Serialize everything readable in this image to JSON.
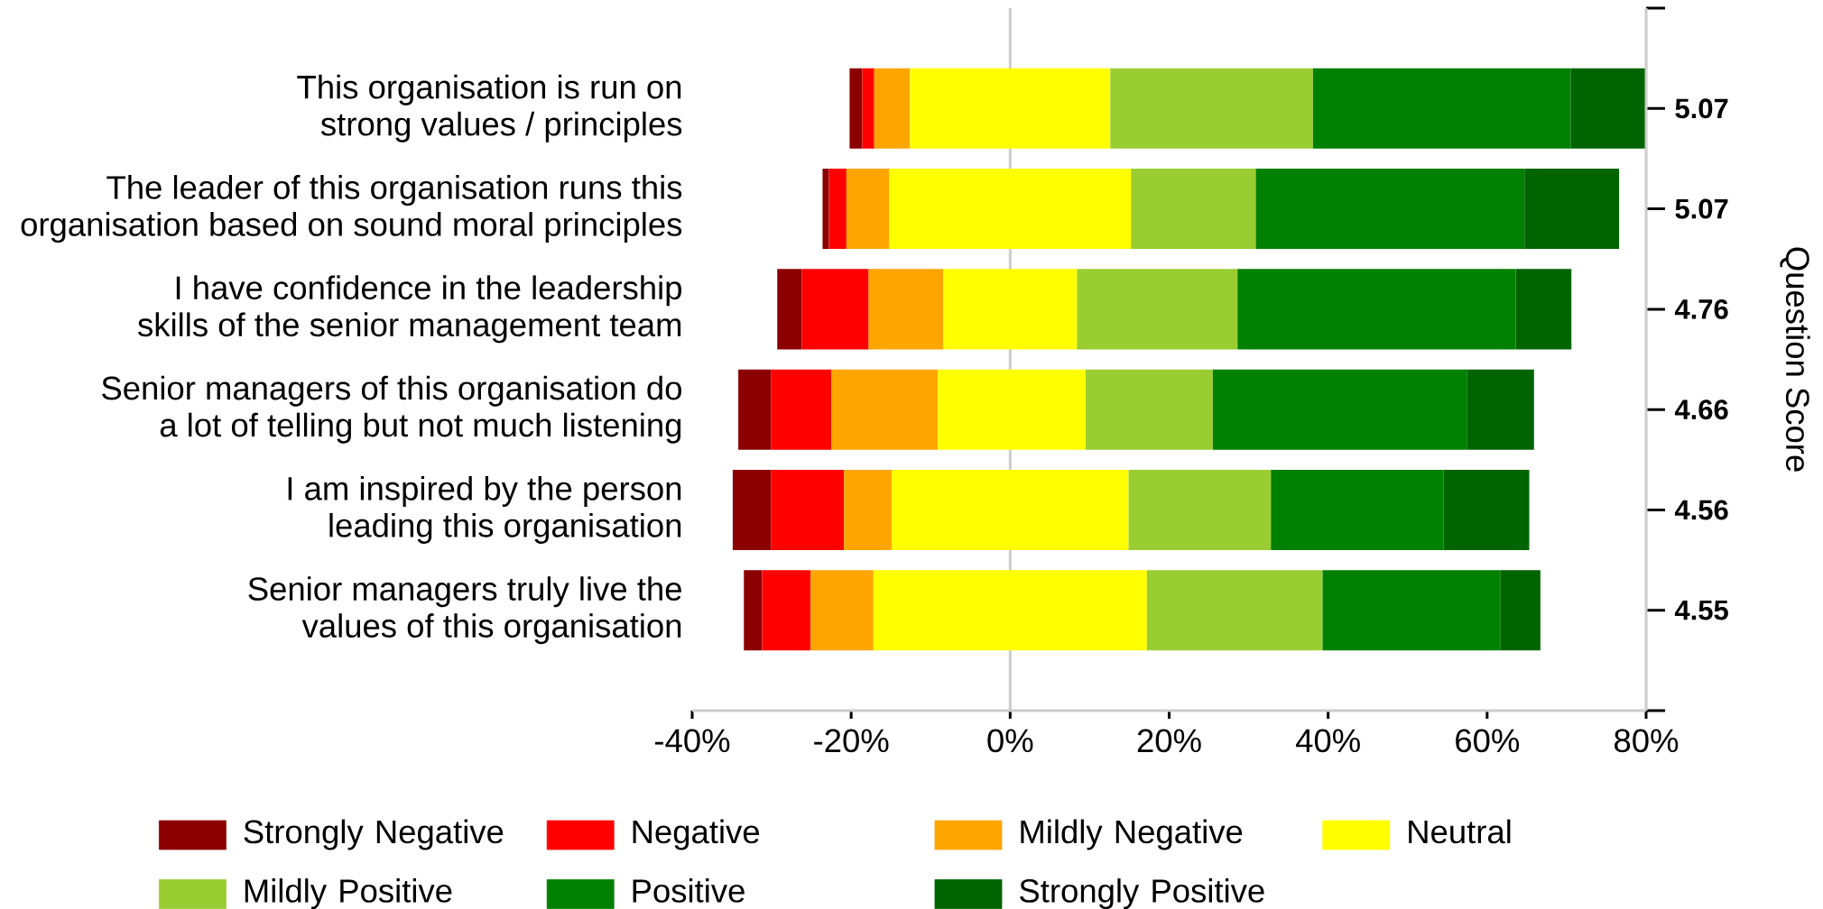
{
  "chart_data": {
    "type": "bar",
    "orientation": "horizontal",
    "categories": [
      "This organisation is run on strong values / principles",
      "The leader of this organisation runs this organisation based on sound moral principles",
      "I have confidence in the leadership skills of the senior management team",
      "Senior managers of this organisation do a lot of telling but not much listening",
      "I am inspired by the person leading this organisation",
      "Senior managers truly live the values of this organisation"
    ],
    "y2_categories": [
      "5.07",
      "5.07",
      "4.76",
      "4.66",
      "4.56",
      "4.55"
    ],
    "y2label": "Question Score",
    "series": [
      {
        "name": "Strongly Negative",
        "color": "#8b0000",
        "base": [
          -20.2,
          -23.6,
          -29.3,
          -34.2,
          -34.9,
          -33.5
        ],
        "values": [
          1.6,
          0.8,
          3.1,
          4.1,
          4.8,
          2.3
        ]
      },
      {
        "name": "Negative",
        "color": "#ff0000",
        "base": [
          -18.6,
          -22.8,
          -26.2,
          -30.1,
          -30.1,
          -31.2
        ],
        "values": [
          1.5,
          2.2,
          8.4,
          7.6,
          9.2,
          6.1
        ]
      },
      {
        "name": "Mildly Negative",
        "color": "#ffa500",
        "base": [
          -17.1,
          -20.6,
          -17.8,
          -22.5,
          -20.9,
          -25.1
        ],
        "values": [
          4.5,
          5.4,
          9.4,
          13.4,
          6.0,
          7.9
        ]
      },
      {
        "name": "Neutral",
        "color": "#ffff00",
        "base": [
          -12.6,
          -15.2,
          -8.4,
          -9.1,
          -14.9,
          -17.2
        ],
        "values": [
          25.2,
          30.4,
          16.8,
          18.6,
          29.8,
          34.4
        ]
      },
      {
        "name": "Mildly Positive",
        "color": "#9acd32",
        "base": [
          12.6,
          15.2,
          8.4,
          9.5,
          14.9,
          17.2
        ],
        "values": [
          25.5,
          15.7,
          20.2,
          16.0,
          17.9,
          22.1
        ]
      },
      {
        "name": "Positive",
        "color": "#008000",
        "base": [
          38.1,
          30.9,
          28.6,
          25.5,
          32.8,
          39.3
        ],
        "values": [
          32.4,
          33.8,
          35.0,
          32.0,
          21.7,
          22.4
        ]
      },
      {
        "name": "Strongly Positive",
        "color": "#006400",
        "base": [
          70.5,
          64.7,
          63.6,
          57.5,
          54.5,
          61.7
        ],
        "values": [
          9.5,
          11.9,
          7.0,
          8.4,
          10.8,
          5.0
        ]
      }
    ],
    "xlim": [
      -40,
      80
    ],
    "xticks": [
      {
        "value": -40,
        "label": "-40%"
      },
      {
        "value": -20,
        "label": "-20%"
      },
      {
        "value": 0,
        "label": "0%"
      },
      {
        "value": 20,
        "label": "20%"
      },
      {
        "value": 40,
        "label": "40%"
      },
      {
        "value": 60,
        "label": "60%"
      },
      {
        "value": 80,
        "label": "80%"
      }
    ],
    "ref_lines": [
      {
        "axis": "x",
        "value": 0,
        "color": "#cccccc"
      }
    ],
    "legend": "bottom"
  }
}
